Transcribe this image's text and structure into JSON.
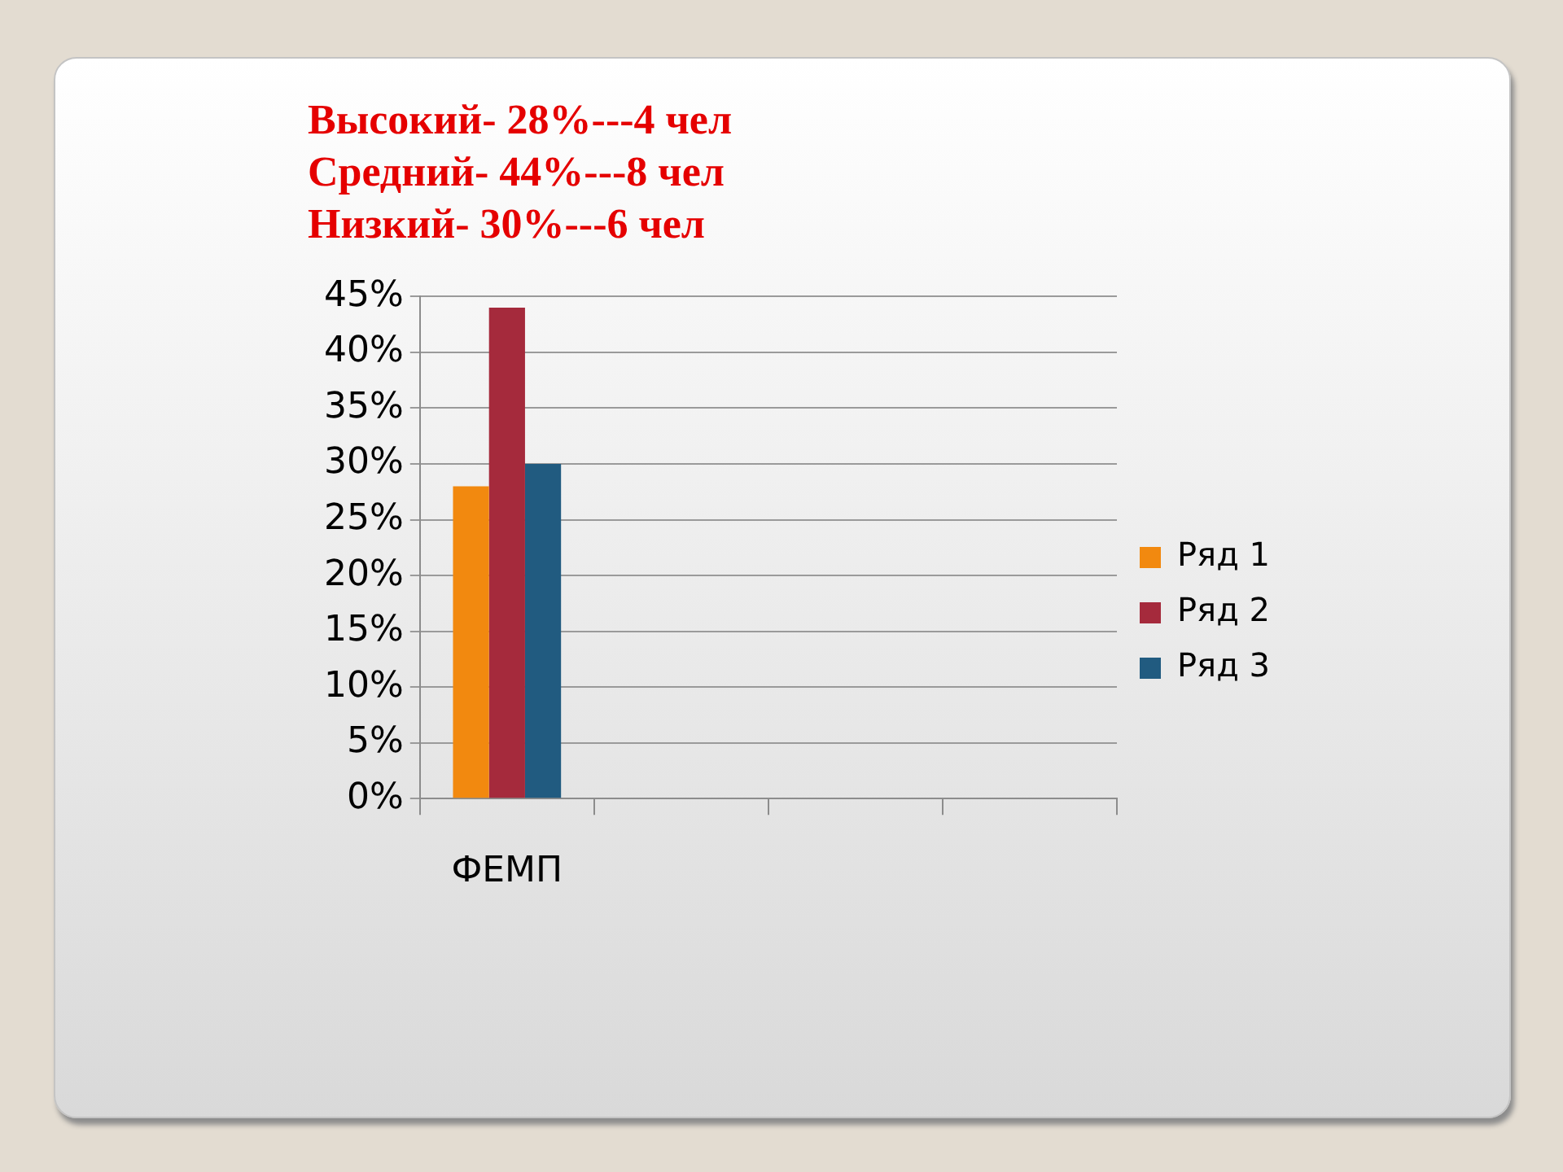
{
  "chart_data": {
    "type": "bar",
    "annotations": [
      "Высокий- 28%---4 чел",
      "Средний- 44%---8 чел",
      "Низкий- 30%---6 чел"
    ],
    "categories": [
      "ФЕМП",
      null,
      null,
      null
    ],
    "series": [
      {
        "name": "Ряд 1",
        "color": "#f2890f",
        "values": [
          28,
          null,
          null,
          null
        ]
      },
      {
        "name": "Ряд 2",
        "color": "#a52a3c",
        "values": [
          44,
          null,
          null,
          null
        ]
      },
      {
        "name": "Ряд 3",
        "color": "#215b80",
        "values": [
          30,
          null,
          null,
          null
        ]
      }
    ],
    "ylim": [
      0,
      45
    ],
    "yticks": [
      {
        "value": 0,
        "label": "0%"
      },
      {
        "value": 5,
        "label": "5%"
      },
      {
        "value": 10,
        "label": "10%"
      },
      {
        "value": 15,
        "label": "15%"
      },
      {
        "value": 20,
        "label": "20%"
      },
      {
        "value": 25,
        "label": "25%"
      },
      {
        "value": 30,
        "label": "30%"
      },
      {
        "value": 35,
        "label": "35%"
      },
      {
        "value": 40,
        "label": "40%"
      },
      {
        "value": 45,
        "label": "45%"
      }
    ],
    "grid": "y",
    "legend": "right"
  }
}
